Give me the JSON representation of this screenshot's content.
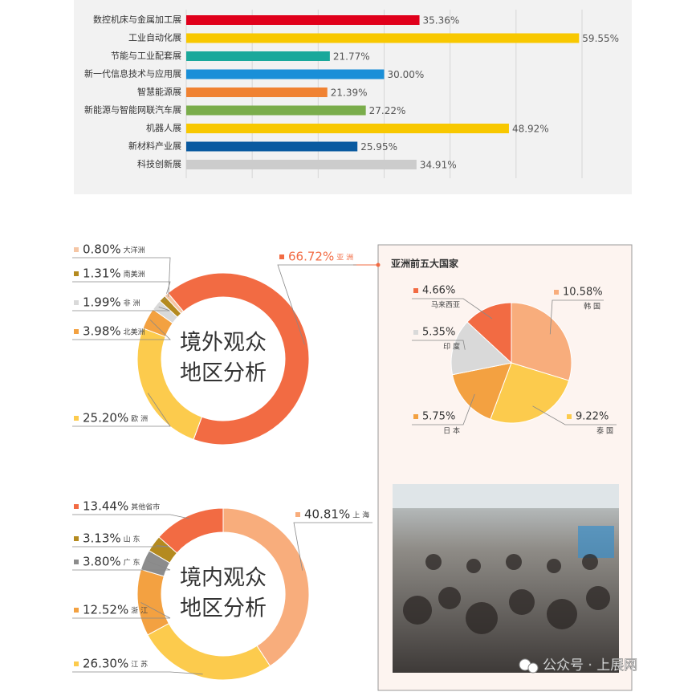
{
  "chart_data": [
    {
      "type": "bar",
      "orientation": "horizontal",
      "categories": [
        "数控机床与金属加工展",
        "工业自动化展",
        "节能与工业配套展",
        "新一代信息技术与应用展",
        "智慧能源展",
        "新能源与智能网联汽车展",
        "机器人展",
        "新材料产业展",
        "科技创新展"
      ],
      "values": [
        35.36,
        59.55,
        21.77,
        30.0,
        21.39,
        27.22,
        48.92,
        25.95,
        34.91
      ],
      "value_labels": [
        "35.36%",
        "59.55%",
        "21.77%",
        "30.00%",
        "21.39%",
        "27.22%",
        "48.92%",
        "25.95%",
        "34.91%"
      ],
      "colors": [
        "#e0001b",
        "#f8c800",
        "#1aa89b",
        "#1a8fd8",
        "#f08232",
        "#7aad4b",
        "#f8c800",
        "#0a5aa0",
        "#cccccc"
      ],
      "xlim": [
        0,
        60
      ],
      "xticks": [
        0,
        10,
        20,
        30,
        40,
        50,
        60
      ],
      "grid": true
    },
    {
      "type": "donut",
      "center_text": [
        "境外观众",
        "地区分析"
      ],
      "categories": [
        "亚 洲",
        "欧 洲",
        "北美洲",
        "非 洲",
        "南美洲",
        "大洋洲"
      ],
      "values": [
        66.72,
        25.2,
        3.98,
        1.99,
        1.31,
        0.8
      ],
      "value_labels": [
        "66.72%",
        "25.20%",
        "3.98%",
        "1.99%",
        "1.31%",
        "0.80%"
      ],
      "colors": [
        "#f26b43",
        "#fccb4d",
        "#f3a141",
        "#d9d9d9",
        "#b48a1f",
        "#f5c6a5"
      ]
    },
    {
      "type": "pie",
      "title": "亚洲前五大国家",
      "categories": [
        "韩 国",
        "泰 国",
        "日 本",
        "印 度",
        "马来西亚"
      ],
      "values": [
        10.58,
        9.22,
        5.75,
        5.35,
        4.66
      ],
      "value_labels": [
        "10.58%",
        "9.22%",
        "5.75%",
        "5.35%",
        "4.66%"
      ],
      "colors": [
        "#f8ad7c",
        "#fccb4d",
        "#f3a141",
        "#d9d9d9",
        "#f26b43"
      ]
    },
    {
      "type": "donut",
      "center_text": [
        "境内观众",
        "地区分析"
      ],
      "categories": [
        "上 海",
        "江 苏",
        "浙 江",
        "广 东",
        "山 东",
        "其他省市"
      ],
      "values": [
        40.81,
        26.3,
        12.52,
        3.8,
        3.13,
        13.44
      ],
      "value_labels": [
        "40.81%",
        "26.30%",
        "12.52%",
        "3.80%",
        "3.13%",
        "13.44%"
      ],
      "colors": [
        "#f8ad7c",
        "#fccb4d",
        "#f3a141",
        "#8c8c8c",
        "#b48a1f",
        "#f26b43"
      ]
    }
  ],
  "watermark": "公众号 · 上展网"
}
